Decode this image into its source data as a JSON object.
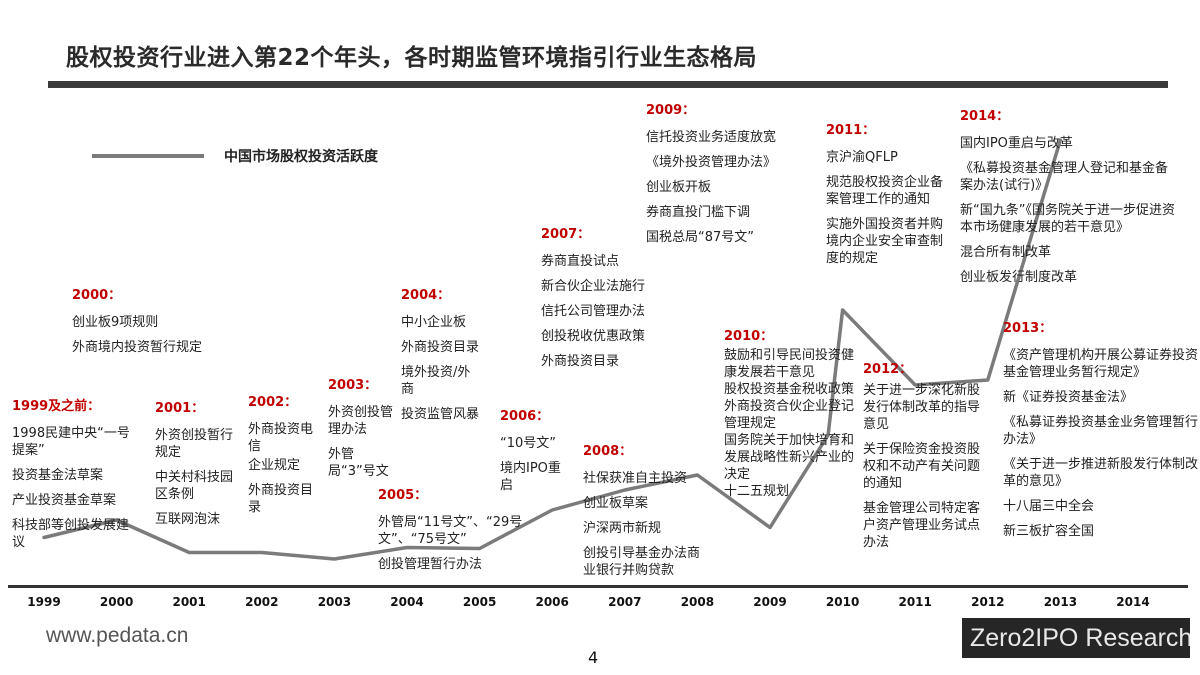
{
  "title": "股权投资行业进入第22个年头，各时期监管环境指引行业生态格局",
  "chart_data": {
    "type": "line",
    "title": "股权投资行业进入第22个年头，各时期监管环境指引行业生态格局",
    "series_name": "中国市场股权投资活跃度",
    "x_categories": [
      "1999",
      "2000",
      "2001",
      "2002",
      "2003",
      "2004",
      "2005",
      "2006",
      "2007",
      "2008",
      "2009",
      "2010",
      "2011",
      "2012",
      "2013",
      "2014"
    ],
    "x_label": "",
    "y_label": "",
    "points": [
      {
        "x": 0.0,
        "y": 9.5
      },
      {
        "x": 1.0,
        "y": 13.0
      },
      {
        "x": 2.0,
        "y": 6.5
      },
      {
        "x": 3.0,
        "y": 6.5
      },
      {
        "x": 4.0,
        "y": 5.2
      },
      {
        "x": 5.0,
        "y": 7.5
      },
      {
        "x": 6.0,
        "y": 7.3
      },
      {
        "x": 7.0,
        "y": 15.0
      },
      {
        "x": 8.0,
        "y": 19.0
      },
      {
        "x": 9.0,
        "y": 22.0
      },
      {
        "x": 10.0,
        "y": 11.5
      },
      {
        "x": 10.8,
        "y": 30.0
      },
      {
        "x": 11.0,
        "y": 55.0
      },
      {
        "x": 12.0,
        "y": 40.0
      },
      {
        "x": 13.0,
        "y": 41.0
      },
      {
        "x": 14.0,
        "y": 89.0
      }
    ],
    "ylim": [
      0,
      100
    ],
    "legend_position": "top-left",
    "color": "#7b7b7b"
  },
  "events": [
    {
      "year": "1999及之前：",
      "items": [
        "1998民建中央“一号提案”",
        "投资基金法草案",
        "产业投资基金草案",
        "科技部等创投发展建议"
      ]
    },
    {
      "year": "2000：",
      "items": [
        "创业板9项规则",
        "外商境内投资暂行规定"
      ]
    },
    {
      "year": "2001：",
      "items": [
        "外资创投暂行规定",
        "中关村科技园区条例",
        "互联网泡沫"
      ]
    },
    {
      "year": "2002：",
      "items": [
        "外商投资电信",
        "企业规定",
        "外商投资目录"
      ]
    },
    {
      "year": "2003：",
      "items": [
        "外资创投管理办法",
        "外管局“3”号文"
      ]
    },
    {
      "year": "2004：",
      "items": [
        "中小企业板",
        "外商投资目录",
        "境外投资/外商",
        "投资监管风暴"
      ]
    },
    {
      "year": "2005：",
      "items": [
        "外管局“11号文”、“29号文”、“75号文”",
        "创投管理暂行办法"
      ]
    },
    {
      "year": "2006：",
      "items": [
        "“10号文”",
        "境内IPO重启"
      ]
    },
    {
      "year": "2007：",
      "items": [
        "券商直投试点",
        "新合伙企业法施行",
        "信托公司管理办法",
        "创投税收优惠政策",
        "外商投资目录"
      ]
    },
    {
      "year": "2008：",
      "items": [
        "社保获准自主投资",
        "创业板草案",
        "沪深两市新规",
        "创投引导基金办法商业银行并购贷款"
      ]
    },
    {
      "year": "2009：",
      "items": [
        "信托投资业务适度放宽",
        "《境外投资管理办法》",
        "创业板开板",
        "券商直投门槛下调",
        "国税总局“87号文”"
      ]
    },
    {
      "year": "2010：",
      "items": [
        "鼓励和引导民间投资健康发展若干意见",
        "股权投资基金税收政策",
        "外商投资合伙企业登记管理规定",
        "国务院关于加快培育和发展战略性新兴产业的决定",
        "十二五规划"
      ]
    },
    {
      "year": "2011：",
      "items": [
        "京沪渝QFLP",
        "规范股权投资企业备案管理工作的通知",
        "实施外国投资者并购境内企业安全审查制度的规定"
      ]
    },
    {
      "year": "2012：",
      "items": [
        "关于进一步深化新股发行体制改革的指导意见",
        "关于保险资金投资股权和不动产有关问题的通知",
        "基金管理公司特定客户资产管理业务试点办法"
      ]
    },
    {
      "year": "2013：",
      "items": [
        "《资产管理机构开展公募证券投资基金管理业务暂行规定》",
        "新《证券投资基金法》",
        "《私募证券投资基金业务管理暂行办法》",
        "《关于进一步推进新股发行体制改革的意见》",
        "十八届三中全会",
        "新三板扩容全国"
      ]
    },
    {
      "year": "2014：",
      "items": [
        "国内IPO重启与改革",
        "《私募投资基金管理人登记和基金备案办法(试行)》",
        "新“国九条”《国务院关于进一步促进资本市场健康发展的若干意见》",
        "混合所有制改革",
        "创业板发行制度改革"
      ]
    }
  ],
  "footer": {
    "website": "www.pedata.cn",
    "page_number": "4",
    "logo_text": "Zero2IPO Research"
  }
}
